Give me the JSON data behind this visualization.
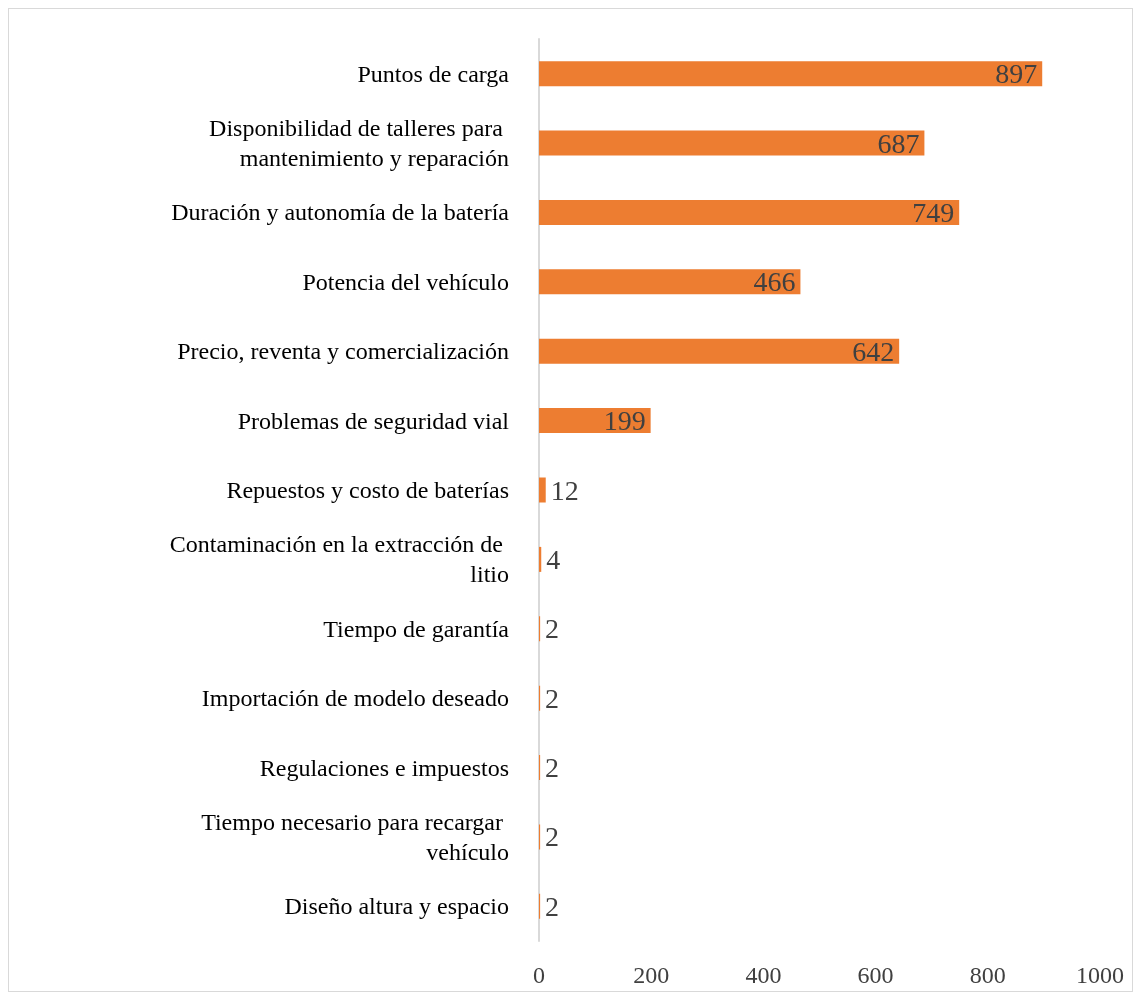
{
  "chart_data": {
    "type": "bar",
    "orientation": "horizontal",
    "categories": [
      "Puntos de carga",
      "Disponibilidad de talleres para mantenimiento y reparación",
      "Duración y autonomía de la batería",
      "Potencia del vehículo",
      "Precio, reventa y comercialización",
      "Problemas de seguridad vial",
      "Repuestos y costo de baterías",
      "Contaminación en la extracción de litio",
      "Tiempo de garantía",
      "Importación de modelo deseado",
      "Regulaciones e impuestos",
      "Tiempo necesario para recargar vehículo",
      "Diseño altura y espacio"
    ],
    "values": [
      897,
      687,
      749,
      466,
      642,
      199,
      12,
      4,
      2,
      2,
      2,
      2,
      2
    ],
    "color": "#ed7d31",
    "data_labels": true,
    "xlim": [
      0,
      1000
    ],
    "xticks": [
      0,
      200,
      400,
      600,
      800,
      1000
    ],
    "grid": false
  }
}
